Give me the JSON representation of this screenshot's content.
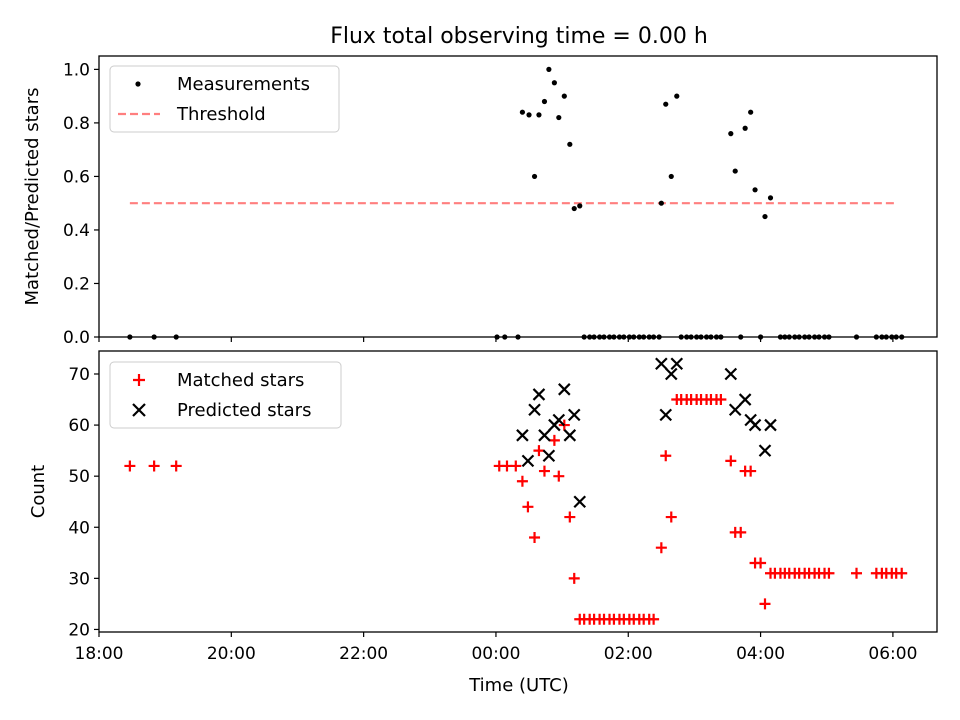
{
  "chart_data": [
    {
      "type": "scatter",
      "title": "Flux total observing time = 0.00 h",
      "ylabel": "Matched/Predicted stars",
      "xlabel": "",
      "ylim": [
        0,
        1.05
      ],
      "yticks": [
        0.0,
        0.2,
        0.4,
        0.6,
        0.8,
        1.0
      ],
      "ytick_labels": [
        "0.0",
        "0.2",
        "0.4",
        "0.6",
        "0.8",
        "1.0"
      ],
      "xlim": [
        "18:00",
        "06:40"
      ],
      "x_unit": "time of day (UTC), hours after 18:00 of day 1",
      "grid": false,
      "legend_position": "upper left",
      "series": [
        {
          "name": "Measurements",
          "color": "#000000",
          "marker": "dot",
          "points": [
            [
              "18:28",
              0.0
            ],
            [
              "18:50",
              0.0
            ],
            [
              "19:10",
              0.0
            ],
            [
              "00:01",
              0.0
            ],
            [
              "00:08",
              0.0
            ],
            [
              "00:20",
              0.0
            ],
            [
              "00:24",
              0.84
            ],
            [
              "00:30",
              0.83
            ],
            [
              "00:35",
              0.6
            ],
            [
              "00:39",
              0.83
            ],
            [
              "00:44",
              0.88
            ],
            [
              "00:48",
              1.0
            ],
            [
              "00:53",
              0.95
            ],
            [
              "00:57",
              0.82
            ],
            [
              "01:02",
              0.9
            ],
            [
              "01:07",
              0.72
            ],
            [
              "01:11",
              0.48
            ],
            [
              "01:16",
              0.49
            ],
            [
              "01:20",
              0.0
            ],
            [
              "01:25",
              0.0
            ],
            [
              "01:29",
              0.0
            ],
            [
              "01:34",
              0.0
            ],
            [
              "01:38",
              0.0
            ],
            [
              "01:43",
              0.0
            ],
            [
              "01:47",
              0.0
            ],
            [
              "01:52",
              0.0
            ],
            [
              "01:56",
              0.0
            ],
            [
              "02:01",
              0.0
            ],
            [
              "02:05",
              0.0
            ],
            [
              "02:10",
              0.0
            ],
            [
              "02:14",
              0.0
            ],
            [
              "02:19",
              0.0
            ],
            [
              "02:23",
              0.0
            ],
            [
              "02:28",
              0.0
            ],
            [
              "02:30",
              0.5
            ],
            [
              "02:34",
              0.87
            ],
            [
              "02:39",
              0.6
            ],
            [
              "02:44",
              0.9
            ],
            [
              "02:48",
              0.0
            ],
            [
              "02:53",
              0.0
            ],
            [
              "02:57",
              0.0
            ],
            [
              "03:02",
              0.0
            ],
            [
              "03:06",
              0.0
            ],
            [
              "03:11",
              0.0
            ],
            [
              "03:15",
              0.0
            ],
            [
              "03:20",
              0.0
            ],
            [
              "03:24",
              0.0
            ],
            [
              "03:33",
              0.76
            ],
            [
              "03:37",
              0.62
            ],
            [
              "03:42",
              0.0
            ],
            [
              "03:46",
              0.78
            ],
            [
              "03:51",
              0.84
            ],
            [
              "03:55",
              0.55
            ],
            [
              "04:00",
              0.0
            ],
            [
              "04:04",
              0.45
            ],
            [
              "04:09",
              0.52
            ],
            [
              "04:18",
              0.0
            ],
            [
              "04:22",
              0.0
            ],
            [
              "04:26",
              0.0
            ],
            [
              "04:31",
              0.0
            ],
            [
              "04:35",
              0.0
            ],
            [
              "04:40",
              0.0
            ],
            [
              "04:44",
              0.0
            ],
            [
              "04:49",
              0.0
            ],
            [
              "04:53",
              0.0
            ],
            [
              "04:58",
              0.0
            ],
            [
              "05:02",
              0.0
            ],
            [
              "05:27",
              0.0
            ],
            [
              "05:45",
              0.0
            ],
            [
              "05:50",
              0.0
            ],
            [
              "05:54",
              0.0
            ],
            [
              "05:59",
              0.0
            ],
            [
              "06:03",
              0.0
            ],
            [
              "06:08",
              0.0
            ]
          ]
        },
        {
          "name": "Threshold",
          "color": "#ff7f7f",
          "style": "dashed",
          "points": [
            [
              "18:28",
              0.5
            ],
            [
              "06:03",
              0.5
            ]
          ]
        }
      ]
    },
    {
      "type": "scatter",
      "title": "",
      "ylabel": "Count",
      "xlabel": "Time (UTC)",
      "ylim": [
        19.5,
        74.5
      ],
      "yticks": [
        20,
        30,
        40,
        50,
        60,
        70
      ],
      "ytick_labels": [
        "20",
        "30",
        "40",
        "50",
        "60",
        "70"
      ],
      "xlim": [
        "18:00",
        "06:40"
      ],
      "xticks": [
        "18:00",
        "20:00",
        "22:00",
        "00:00",
        "02:00",
        "04:00",
        "06:00"
      ],
      "xtick_labels": [
        "18:00",
        "20:00",
        "22:00",
        "00:00",
        "02:00",
        "04:00",
        "06:00"
      ],
      "grid": false,
      "legend_position": "upper left",
      "series": [
        {
          "name": "Matched stars",
          "color": "#ff0000",
          "marker": "plus",
          "points": [
            [
              "18:28",
              52
            ],
            [
              "18:50",
              52
            ],
            [
              "19:10",
              52
            ],
            [
              "00:03",
              52
            ],
            [
              "00:10",
              52
            ],
            [
              "00:18",
              52
            ],
            [
              "00:24",
              49
            ],
            [
              "00:29",
              44
            ],
            [
              "00:35",
              38
            ],
            [
              "00:39",
              55
            ],
            [
              "00:44",
              51
            ],
            [
              "00:53",
              57
            ],
            [
              "00:57",
              50
            ],
            [
              "01:02",
              60
            ],
            [
              "01:07",
              42
            ],
            [
              "01:11",
              30
            ],
            [
              "01:16",
              22
            ],
            [
              "01:20",
              22
            ],
            [
              "01:25",
              22
            ],
            [
              "01:29",
              22
            ],
            [
              "01:34",
              22
            ],
            [
              "01:38",
              22
            ],
            [
              "01:43",
              22
            ],
            [
              "01:47",
              22
            ],
            [
              "01:52",
              22
            ],
            [
              "01:56",
              22
            ],
            [
              "02:01",
              22
            ],
            [
              "02:05",
              22
            ],
            [
              "02:10",
              22
            ],
            [
              "02:14",
              22
            ],
            [
              "02:19",
              22
            ],
            [
              "02:23",
              22
            ],
            [
              "02:30",
              36
            ],
            [
              "02:34",
              54
            ],
            [
              "02:39",
              42
            ],
            [
              "02:44",
              65
            ],
            [
              "02:48",
              65
            ],
            [
              "02:53",
              65
            ],
            [
              "02:57",
              65
            ],
            [
              "03:02",
              65
            ],
            [
              "03:06",
              65
            ],
            [
              "03:11",
              65
            ],
            [
              "03:15",
              65
            ],
            [
              "03:20",
              65
            ],
            [
              "03:24",
              65
            ],
            [
              "03:33",
              53
            ],
            [
              "03:37",
              39
            ],
            [
              "03:42",
              39
            ],
            [
              "03:46",
              51
            ],
            [
              "03:51",
              51
            ],
            [
              "03:55",
              33
            ],
            [
              "04:00",
              33
            ],
            [
              "04:04",
              25
            ],
            [
              "04:09",
              31
            ],
            [
              "04:13",
              31
            ],
            [
              "04:18",
              31
            ],
            [
              "04:22",
              31
            ],
            [
              "04:26",
              31
            ],
            [
              "04:31",
              31
            ],
            [
              "04:35",
              31
            ],
            [
              "04:40",
              31
            ],
            [
              "04:44",
              31
            ],
            [
              "04:49",
              31
            ],
            [
              "04:53",
              31
            ],
            [
              "04:58",
              31
            ],
            [
              "05:02",
              31
            ],
            [
              "05:27",
              31
            ],
            [
              "05:45",
              31
            ],
            [
              "05:50",
              31
            ],
            [
              "05:54",
              31
            ],
            [
              "05:59",
              31
            ],
            [
              "06:03",
              31
            ],
            [
              "06:08",
              31
            ]
          ]
        },
        {
          "name": "Predicted stars",
          "color": "#000000",
          "marker": "x",
          "points": [
            [
              "00:24",
              58
            ],
            [
              "00:29",
              53
            ],
            [
              "00:35",
              63
            ],
            [
              "00:39",
              66
            ],
            [
              "00:44",
              58
            ],
            [
              "00:48",
              54
            ],
            [
              "00:53",
              60
            ],
            [
              "00:57",
              61
            ],
            [
              "01:02",
              67
            ],
            [
              "01:07",
              58
            ],
            [
              "01:11",
              62
            ],
            [
              "01:16",
              45
            ],
            [
              "02:30",
              72
            ],
            [
              "02:34",
              62
            ],
            [
              "02:39",
              70
            ],
            [
              "02:44",
              72
            ],
            [
              "03:33",
              70
            ],
            [
              "03:37",
              63
            ],
            [
              "03:46",
              65
            ],
            [
              "03:51",
              61
            ],
            [
              "03:55",
              60
            ],
            [
              "04:04",
              55
            ],
            [
              "04:09",
              60
            ]
          ]
        }
      ]
    }
  ]
}
